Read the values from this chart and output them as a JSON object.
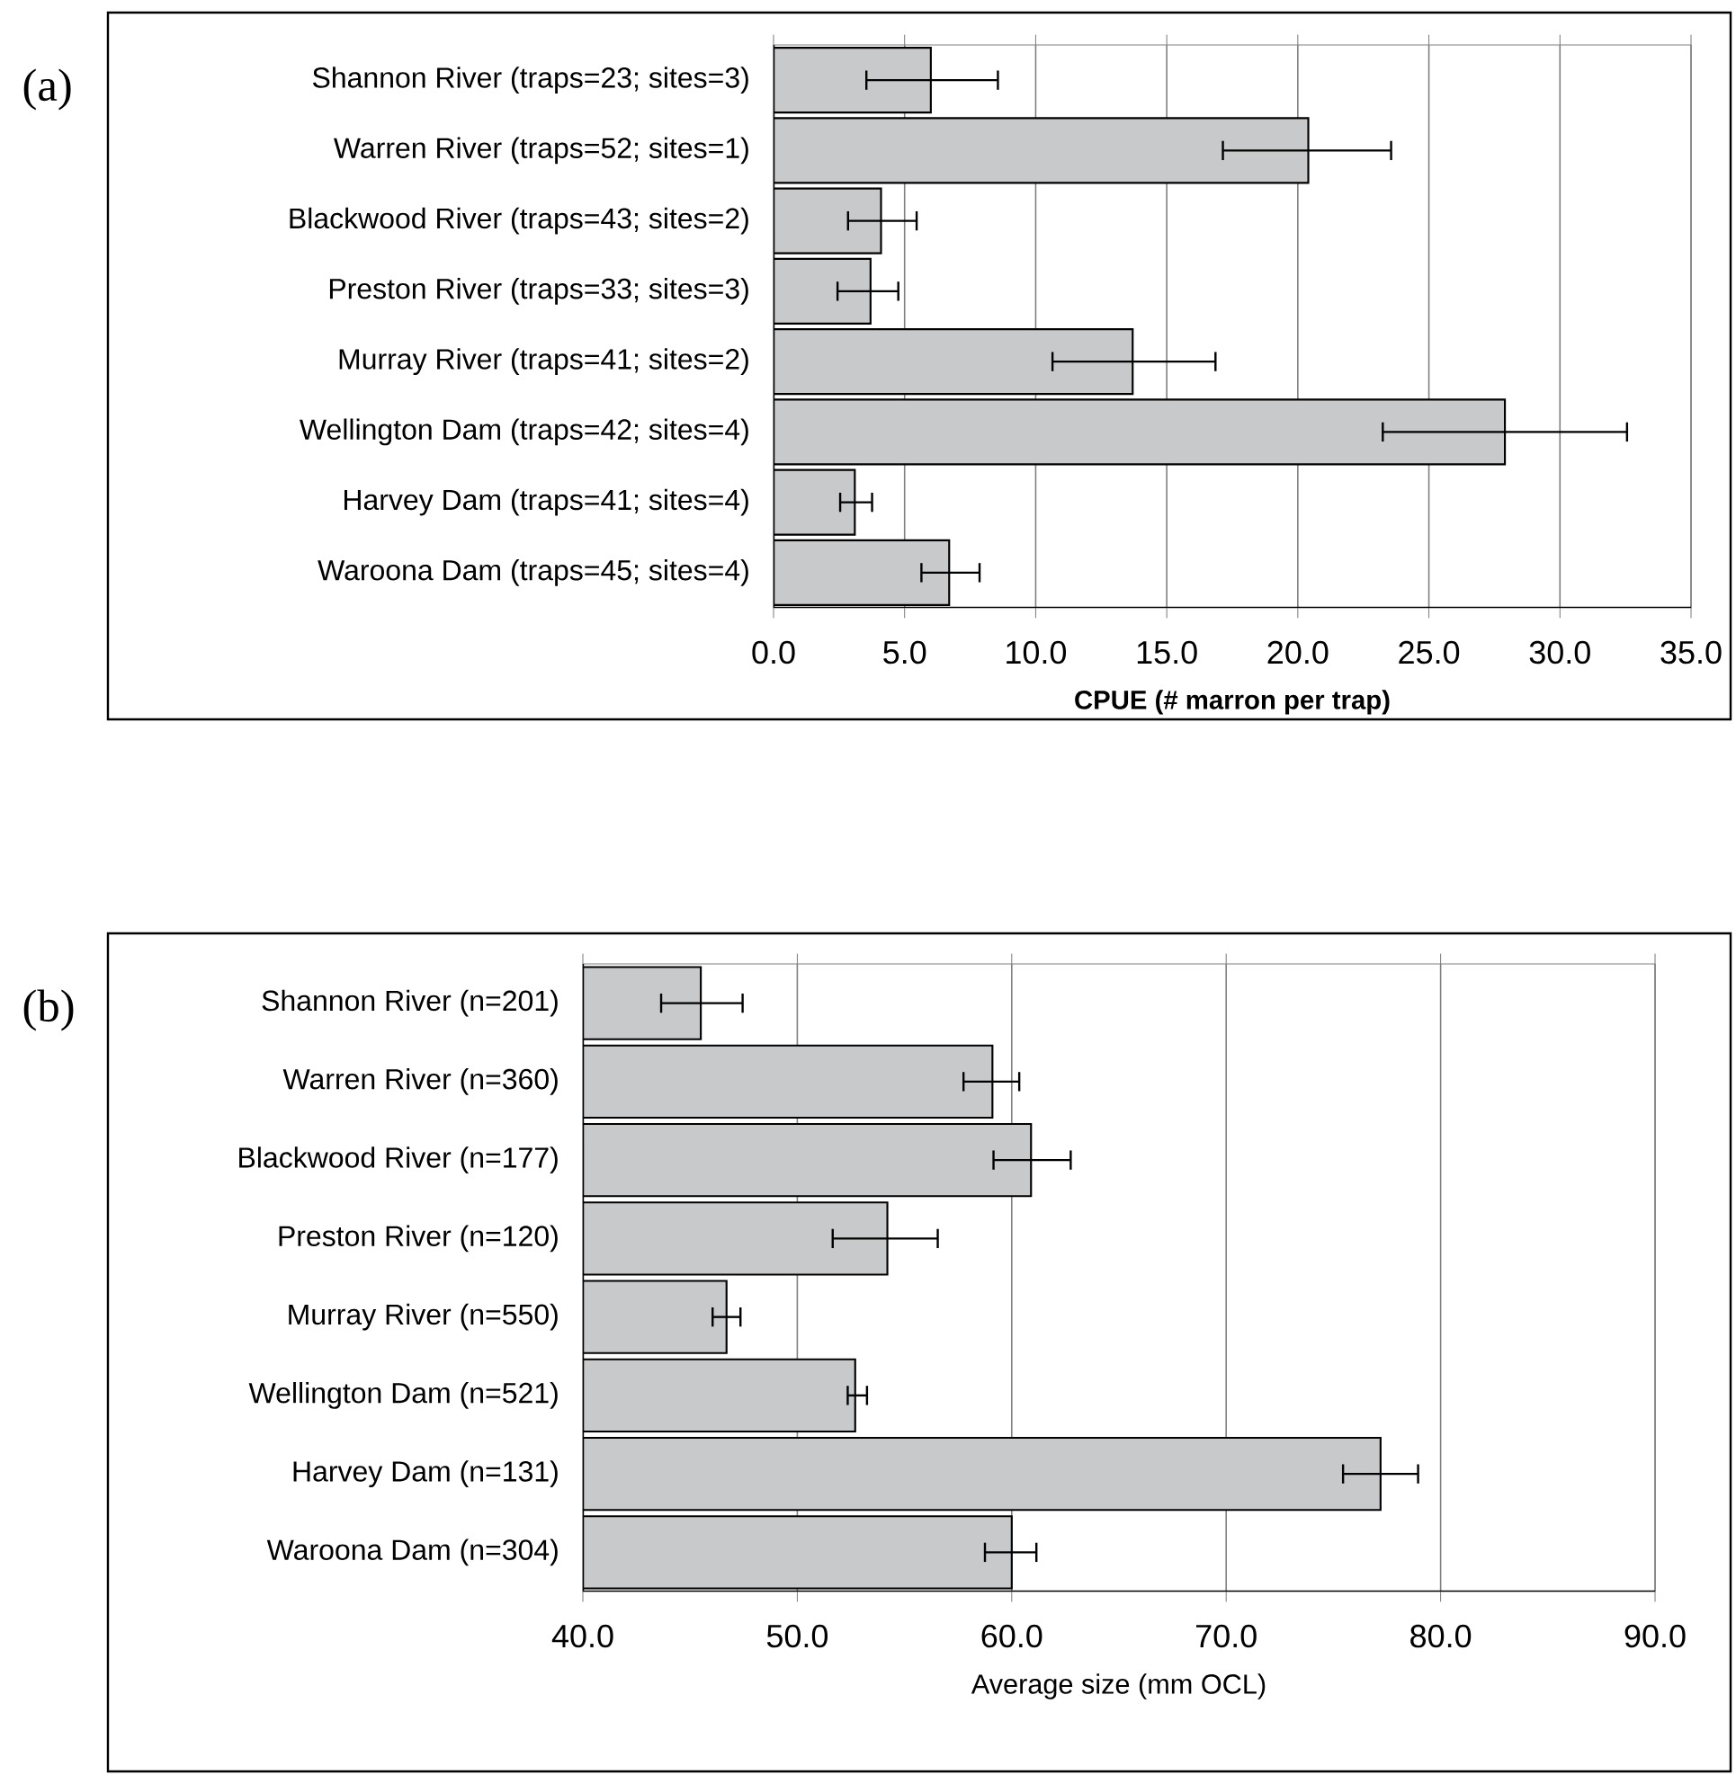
{
  "chart_data": [
    {
      "type": "bar",
      "orientation": "horizontal",
      "annotations": [
        "(a)"
      ],
      "xlabel": "CPUE (# marron per trap)",
      "categories": [
        "Shannon River (traps=23; sites=3)",
        "Warren River (traps=52; sites=1)",
        "Blackwood River (traps=43; sites=2)",
        "Preston River (traps=33; sites=3)",
        "Murray River (traps=41; sites=2)",
        "Wellington Dam (traps=42; sites=4)",
        "Harvey Dam (traps=41; sites=4)",
        "Waroona Dam (traps=45; sites=4)"
      ],
      "values": [
        6.0,
        20.4,
        4.1,
        3.7,
        13.7,
        27.9,
        3.1,
        6.7
      ],
      "errors": [
        [
          3.5,
          8.6
        ],
        [
          17.1,
          23.6
        ],
        [
          2.8,
          5.5
        ],
        [
          2.4,
          4.8
        ],
        [
          10.6,
          16.9
        ],
        [
          23.2,
          32.6
        ],
        [
          2.5,
          3.8
        ],
        [
          5.6,
          7.9
        ]
      ],
      "color": "#c8c9cb",
      "xlim": [
        0,
        35
      ],
      "xticks": [
        {
          "value": 0,
          "label": "0.0"
        },
        {
          "value": 5,
          "label": "5.0"
        },
        {
          "value": 10,
          "label": "10.0"
        },
        {
          "value": 15,
          "label": "15.0"
        },
        {
          "value": 20,
          "label": "20.0"
        },
        {
          "value": 25,
          "label": "25.0"
        },
        {
          "value": 30,
          "label": "30.0"
        },
        {
          "value": 35,
          "label": "35.0"
        }
      ],
      "grid": "x"
    },
    {
      "type": "bar",
      "orientation": "horizontal",
      "annotations": [
        "(b)"
      ],
      "xlabel": "Average size (mm OCL)",
      "categories": [
        "Shannon River (n=201)",
        "Warren River (n=360)",
        "Blackwood River (n=177)",
        "Preston River (n=120)",
        "Murray River (n=550)",
        "Wellington Dam (n=521)",
        "Harvey Dam (n=131)",
        "Waroona Dam (n=304)"
      ],
      "values": [
        45.5,
        59.1,
        60.9,
        54.2,
        46.7,
        52.7,
        77.2,
        60.0
      ],
      "errors": [
        [
          43.6,
          47.5
        ],
        [
          57.7,
          60.4
        ],
        [
          59.1,
          62.8
        ],
        [
          51.6,
          56.6
        ],
        [
          46.0,
          47.4
        ],
        [
          52.3,
          53.3
        ],
        [
          75.4,
          79.0
        ],
        [
          58.7,
          61.2
        ]
      ],
      "color": "#c8c9cb",
      "xlim": [
        40,
        90
      ],
      "xticks": [
        {
          "value": 40,
          "label": "40.0"
        },
        {
          "value": 50,
          "label": "50.0"
        },
        {
          "value": 60,
          "label": "60.0"
        },
        {
          "value": 70,
          "label": "70.0"
        },
        {
          "value": 80,
          "label": "80.0"
        },
        {
          "value": 90,
          "label": "90.0"
        }
      ],
      "grid": "x"
    }
  ]
}
